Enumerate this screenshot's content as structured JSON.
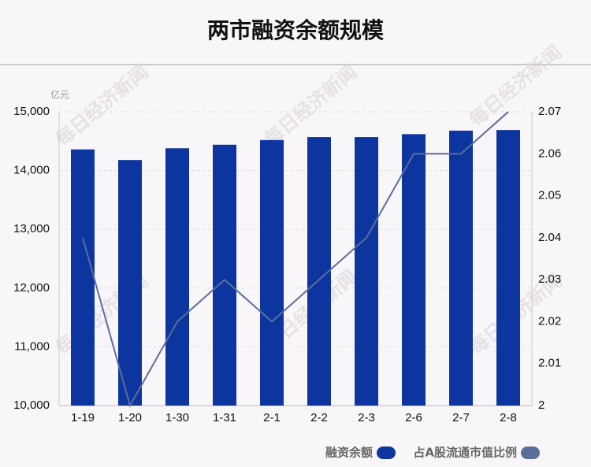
{
  "chart_data": {
    "type": "combo",
    "title": "两市融资余额规模",
    "y_label": "亿元",
    "watermark": "每日经济新闻",
    "categories": [
      "1-19",
      "1-20",
      "1-30",
      "1-31",
      "2-1",
      "2-2",
      "2-3",
      "2-6",
      "2-7",
      "2-8"
    ],
    "series": [
      {
        "name": "融资余额",
        "type": "bar",
        "color": "#0d35a0",
        "values": [
          14360,
          14180,
          14380,
          14440,
          14520,
          14570,
          14570,
          14620,
          14680,
          14690
        ]
      },
      {
        "name": "占A股流通市值比例",
        "type": "line",
        "axis": "y2",
        "color": "#5b6e99",
        "values": [
          2.04,
          2.0,
          2.02,
          2.03,
          2.02,
          2.03,
          2.04,
          2.06,
          2.06,
          2.07
        ]
      }
    ],
    "ylim": [
      10000,
      15000
    ],
    "yticks": [
      {
        "value": 10000,
        "label": "10,000"
      },
      {
        "value": 11000,
        "label": "11,000"
      },
      {
        "value": 12000,
        "label": "12,000"
      },
      {
        "value": 13000,
        "label": "13,000"
      },
      {
        "value": 14000,
        "label": "14,000"
      },
      {
        "value": 15000,
        "label": "15,000"
      }
    ],
    "y2lim": [
      2,
      2.07
    ],
    "y2ticks": [
      2,
      2.01,
      2.02,
      2.03,
      2.04,
      2.05,
      2.06,
      2.07
    ],
    "grid": true
  }
}
